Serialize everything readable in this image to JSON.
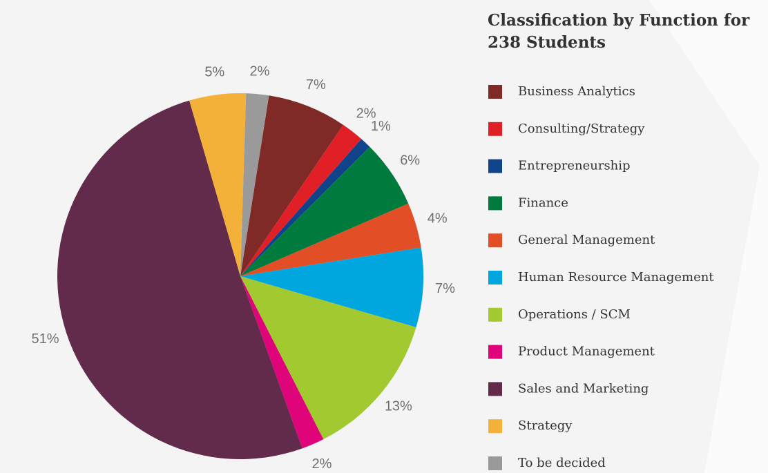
{
  "chart_data": {
    "type": "pie",
    "title": "Classification by Function for 238 Students",
    "categories": [
      "Business Analytics",
      "Consulting/Strategy",
      "Entrepreneurship",
      "Finance",
      "General Management",
      "Human Resource Management",
      "Operations / SCM",
      "Product Management",
      "Sales and Marketing",
      "Strategy",
      "To be decided"
    ],
    "values": [
      7,
      2,
      1,
      6,
      4,
      7,
      13,
      2,
      51,
      5,
      2
    ],
    "value_labels": [
      "7%",
      "2%",
      "1%",
      "6%",
      "4%",
      "7%",
      "13%",
      "2%",
      "51%",
      "5%",
      "2%"
    ],
    "colors": [
      "#7f2a27",
      "#e01f26",
      "#11438a",
      "#007a3d",
      "#e24e26",
      "#00a6de",
      "#a2c92f",
      "#e0047a",
      "#632b4b",
      "#f4b13a",
      "#9a9a9a"
    ],
    "legend": "right"
  }
}
